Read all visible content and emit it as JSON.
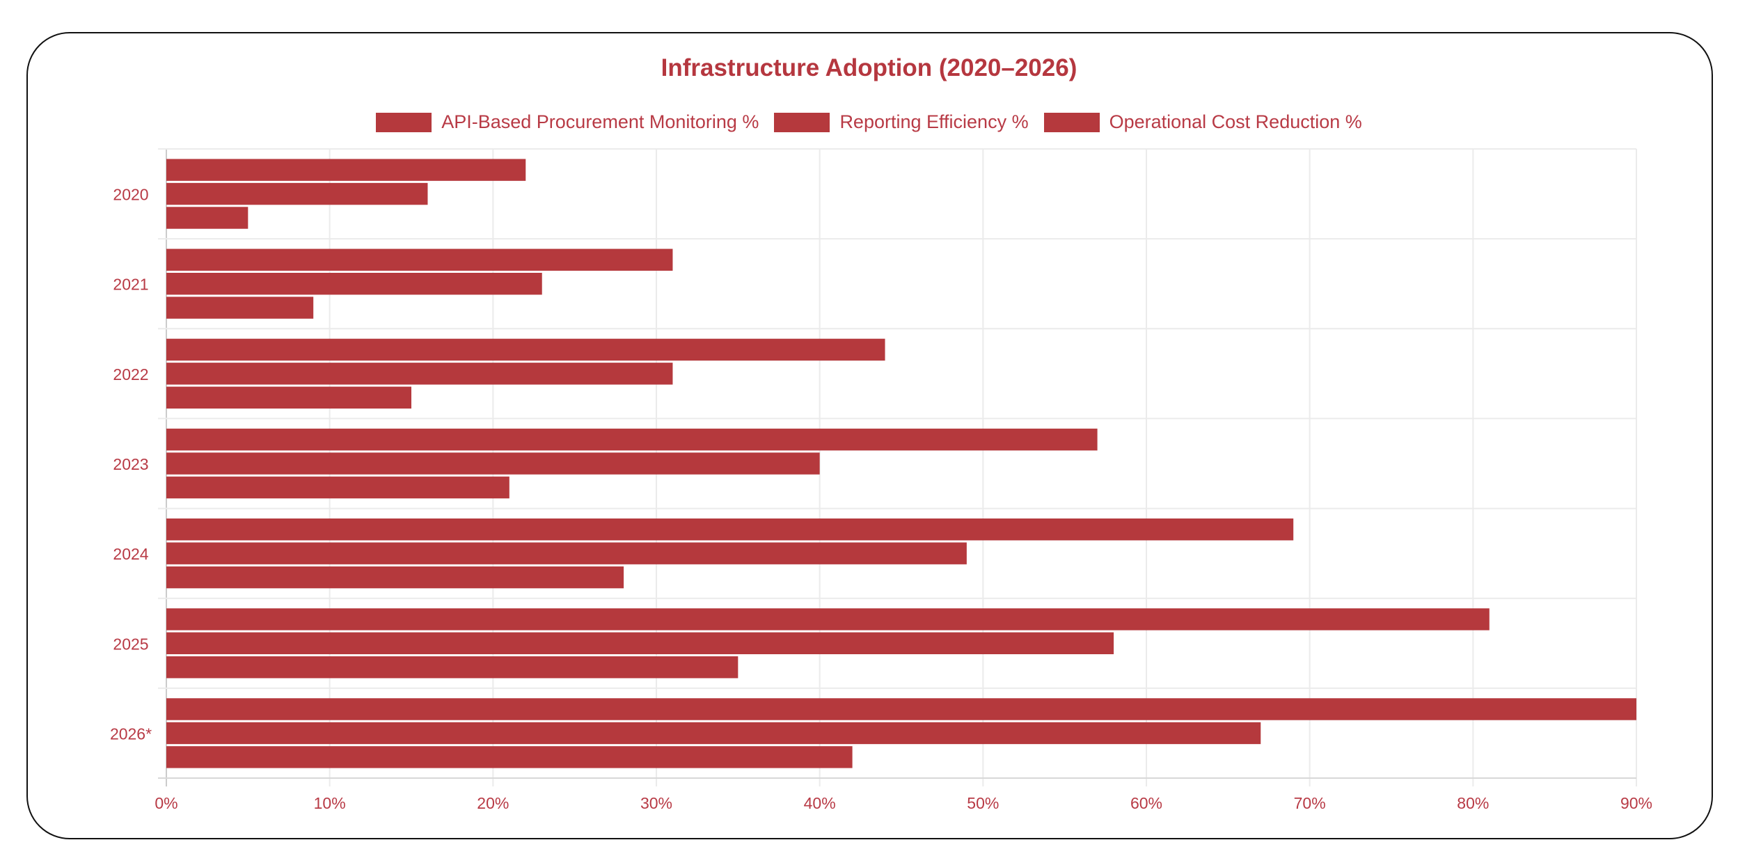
{
  "chart_data": {
    "type": "bar",
    "orientation": "horizontal",
    "title": "Infrastructure Adoption (2020–2026)",
    "categories": [
      "2020",
      "2021",
      "2022",
      "2023",
      "2024",
      "2025",
      "2026*"
    ],
    "series": [
      {
        "name": "API-Based Procurement Monitoring %",
        "values": [
          22,
          31,
          44,
          57,
          69,
          81,
          90
        ],
        "color": "#b5393d"
      },
      {
        "name": "Reporting Efficiency %",
        "values": [
          16,
          23,
          31,
          40,
          49,
          58,
          67
        ],
        "color": "#b5393d"
      },
      {
        "name": "Operational Cost Reduction %",
        "values": [
          5,
          9,
          15,
          21,
          28,
          35,
          42
        ],
        "color": "#b5393d"
      }
    ],
    "xlim": [
      0,
      90
    ],
    "xticks": [
      "0%",
      "10%",
      "20%",
      "30%",
      "40%",
      "50%",
      "60%",
      "70%",
      "80%",
      "90%"
    ],
    "grid": true,
    "legend": "top-center"
  }
}
